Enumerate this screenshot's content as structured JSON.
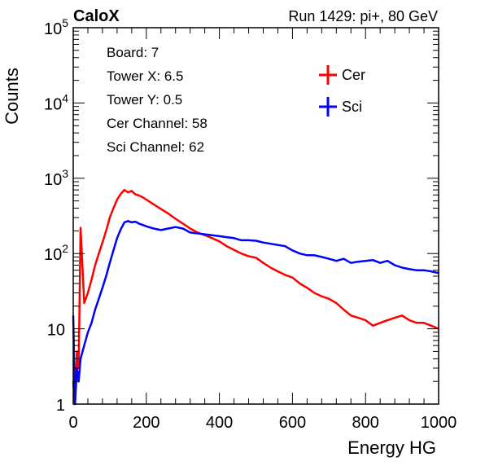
{
  "header": {
    "title": "CaloX",
    "run_label": "Run 1429: pi+, 80 GeV"
  },
  "info_box": [
    "Board: 7",
    "Tower X: 6.5",
    "Tower Y: 0.5",
    "Cer Channel: 58",
    "Sci Channel: 62"
  ],
  "chart_data": {
    "type": "line",
    "xlabel": "Energy HG",
    "ylabel": "Counts",
    "xlim": [
      0,
      1000
    ],
    "ylim": [
      1,
      100000
    ],
    "y_scale": "log",
    "x_ticks": [
      0,
      200,
      400,
      600,
      800,
      1000
    ],
    "x_tick_labels": [
      "0",
      "200",
      "400",
      "600",
      "800",
      "1000"
    ],
    "y_ticks": [
      1,
      10,
      100,
      1000,
      10000,
      100000
    ],
    "y_tick_labels": [
      {
        "base": "1",
        "exp": ""
      },
      {
        "base": "10",
        "exp": ""
      },
      {
        "base": "10",
        "exp": "2"
      },
      {
        "base": "10",
        "exp": "3"
      },
      {
        "base": "10",
        "exp": "4"
      },
      {
        "base": "10",
        "exp": "5"
      }
    ],
    "legend_position": "top-right",
    "grid": false,
    "series": [
      {
        "name": "Cer",
        "color": "#ff0000",
        "x": [
          0,
          5,
          10,
          15,
          20,
          30,
          40,
          50,
          60,
          70,
          80,
          90,
          100,
          110,
          120,
          130,
          140,
          150,
          160,
          170,
          180,
          190,
          200,
          220,
          240,
          260,
          280,
          300,
          320,
          340,
          360,
          380,
          400,
          420,
          440,
          460,
          480,
          500,
          520,
          540,
          560,
          580,
          600,
          620,
          640,
          660,
          680,
          700,
          720,
          740,
          760,
          780,
          800,
          820,
          840,
          860,
          880,
          900,
          920,
          940,
          960,
          980,
          1000
        ],
        "y": [
          2,
          1,
          5,
          3,
          220,
          22,
          30,
          45,
          70,
          100,
          140,
          200,
          300,
          400,
          520,
          620,
          700,
          650,
          680,
          610,
          590,
          560,
          520,
          450,
          390,
          340,
          290,
          250,
          215,
          190,
          175,
          160,
          145,
          125,
          112,
          100,
          92,
          88,
          75,
          65,
          58,
          52,
          48,
          40,
          35,
          30,
          27,
          25,
          22,
          18,
          15,
          14,
          13,
          11,
          12,
          13,
          14,
          15,
          13,
          12,
          12,
          11,
          10
        ]
      },
      {
        "name": "Sci",
        "color": "#0000ff",
        "x": [
          0,
          5,
          10,
          15,
          20,
          30,
          40,
          50,
          60,
          70,
          80,
          90,
          100,
          110,
          120,
          130,
          140,
          150,
          160,
          170,
          180,
          190,
          200,
          220,
          240,
          260,
          280,
          300,
          320,
          340,
          360,
          380,
          400,
          420,
          440,
          460,
          480,
          500,
          520,
          540,
          560,
          580,
          600,
          620,
          640,
          660,
          680,
          700,
          720,
          740,
          760,
          780,
          800,
          820,
          840,
          860,
          880,
          900,
          920,
          940,
          960,
          980,
          1000
        ],
        "y": [
          15,
          1,
          3,
          2,
          4,
          6,
          9,
          12,
          18,
          25,
          35,
          50,
          75,
          110,
          160,
          210,
          260,
          270,
          260,
          265,
          250,
          240,
          230,
          215,
          205,
          215,
          225,
          215,
          190,
          185,
          180,
          175,
          170,
          165,
          160,
          150,
          150,
          148,
          140,
          135,
          130,
          125,
          110,
          100,
          95,
          95,
          90,
          85,
          80,
          85,
          75,
          78,
          80,
          82,
          75,
          80,
          70,
          65,
          62,
          60,
          60,
          58,
          55
        ]
      }
    ]
  }
}
